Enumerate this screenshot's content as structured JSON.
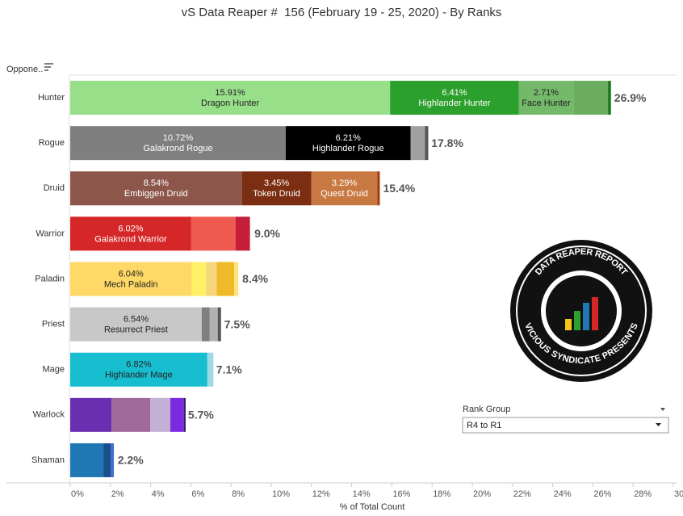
{
  "chart_data": {
    "type": "bar",
    "title": "vS Data Reaper #  156 (February 19 - 25, 2020) - By Ranks",
    "y_label": "Oppone..",
    "x_label": "% of Total Count",
    "xlim": [
      0,
      30
    ],
    "xticks": [
      {
        "value": 0,
        "label": "0%"
      },
      {
        "value": 2,
        "label": "2%"
      },
      {
        "value": 4,
        "label": "4%"
      },
      {
        "value": 6,
        "label": "6%"
      },
      {
        "value": 8,
        "label": "8%"
      },
      {
        "value": 10,
        "label": "10%"
      },
      {
        "value": 12,
        "label": "12%"
      },
      {
        "value": 14,
        "label": "14%"
      },
      {
        "value": 16,
        "label": "16%"
      },
      {
        "value": 18,
        "label": "18%"
      },
      {
        "value": 20,
        "label": "20%"
      },
      {
        "value": 22,
        "label": "22%"
      },
      {
        "value": 24,
        "label": "24%"
      },
      {
        "value": 26,
        "label": "26%"
      },
      {
        "value": 28,
        "label": "28%"
      },
      {
        "value": 30,
        "label": "30%"
      }
    ],
    "categories": [
      "Hunter",
      "Rogue",
      "Druid",
      "Warrior",
      "Paladin",
      "Priest",
      "Mage",
      "Warlock",
      "Shaman"
    ],
    "rows": [
      {
        "total": 26.9,
        "total_label": "26.9%",
        "segments": [
          {
            "name": "Dragon Hunter",
            "value": 15.91,
            "value_label": "15.91%",
            "color": "#98df8a",
            "label_color": "#222"
          },
          {
            "name": "Highlander Hunter",
            "value": 6.41,
            "value_label": "6.41%",
            "color": "#2ca02c",
            "label_color": "#fff"
          },
          {
            "name": "Face Hunter",
            "value": 2.71,
            "value_label": "2.71%",
            "color": "#74b86a",
            "label_color": "#222"
          },
          {
            "value": 1.72,
            "color": "#6aad5e"
          },
          {
            "value": 0.15,
            "color": "#1f7a1f"
          }
        ]
      },
      {
        "total": 17.8,
        "total_label": "17.8%",
        "segments": [
          {
            "name": "Galakrond Rogue",
            "value": 10.72,
            "value_label": "10.72%",
            "color": "#7f7f7f",
            "label_color": "#fff"
          },
          {
            "name": "Highlander Rogue",
            "value": 6.21,
            "value_label": "6.21%",
            "color": "#000000",
            "label_color": "#fff"
          },
          {
            "value": 0.72,
            "color": "#a0a0a0"
          },
          {
            "value": 0.16,
            "color": "#555555"
          }
        ]
      },
      {
        "total": 15.4,
        "total_label": "15.4%",
        "segments": [
          {
            "name": "Embiggen Druid",
            "value": 8.54,
            "value_label": "8.54%",
            "color": "#8c564b",
            "label_color": "#fff"
          },
          {
            "name": "Token Druid",
            "value": 3.45,
            "value_label": "3.45%",
            "color": "#7b2e12",
            "label_color": "#fff"
          },
          {
            "name": "Quest Druid",
            "value": 3.29,
            "value_label": "3.29%",
            "color": "#c87941",
            "label_color": "#fff"
          },
          {
            "value": 0.12,
            "color": "#a33a10"
          }
        ]
      },
      {
        "total": 9.0,
        "total_label": "9.0%",
        "segments": [
          {
            "name": "Galakrond Warrior",
            "value": 6.02,
            "value_label": "6.02%",
            "color": "#d62728",
            "label_color": "#fff"
          },
          {
            "value": 2.2,
            "color": "#ef5a50"
          },
          {
            "value": 0.72,
            "color": "#c41e3a"
          }
        ]
      },
      {
        "total": 8.4,
        "total_label": "8.4%",
        "segments": [
          {
            "name": "Mech Paladin",
            "value": 6.04,
            "value_label": "6.04%",
            "color": "#ffd966",
            "label_color": "#222"
          },
          {
            "value": 0.72,
            "color": "#fff066"
          },
          {
            "value": 0.52,
            "color": "#f7d57a"
          },
          {
            "value": 0.88,
            "color": "#f0b92a"
          },
          {
            "value": 0.2,
            "color": "#ffe27a"
          }
        ]
      },
      {
        "total": 7.5,
        "total_label": "7.5%",
        "segments": [
          {
            "name": "Resurrect Priest",
            "value": 6.54,
            "value_label": "6.54%",
            "color": "#c7c7c7",
            "label_color": "#222"
          },
          {
            "value": 0.4,
            "color": "#7f7f7f"
          },
          {
            "value": 0.4,
            "color": "#b0b0b0"
          },
          {
            "value": 0.16,
            "color": "#555555"
          }
        ]
      },
      {
        "total": 7.1,
        "total_label": "7.1%",
        "segments": [
          {
            "name": "Highlander Mage",
            "value": 6.82,
            "value_label": "6.82%",
            "color": "#17becf",
            "label_color": "#222"
          },
          {
            "value": 0.3,
            "color": "#9edae5"
          }
        ]
      },
      {
        "total": 5.7,
        "total_label": "5.7%",
        "segments": [
          {
            "value": 2.05,
            "color": "#6a2fb0"
          },
          {
            "value": 1.93,
            "color": "#a06a9a"
          },
          {
            "value": 1.0,
            "color": "#c5b0d5"
          },
          {
            "value": 0.68,
            "color": "#7a2be0"
          },
          {
            "value": 0.08,
            "color": "#3a1a60"
          }
        ]
      },
      {
        "total": 2.2,
        "total_label": "2.2%",
        "segments": [
          {
            "value": 1.65,
            "color": "#1f77b4"
          },
          {
            "value": 0.36,
            "color": "#1a4f8a"
          },
          {
            "value": 0.16,
            "color": "#3f6fd0"
          }
        ]
      }
    ]
  },
  "filter": {
    "label": "Rank Group",
    "value": "R4 to R1"
  },
  "logo": {
    "title": "DATA REAPER REPORT",
    "subtitle": "VICIOUS SYNDICATE PRESENTS"
  }
}
